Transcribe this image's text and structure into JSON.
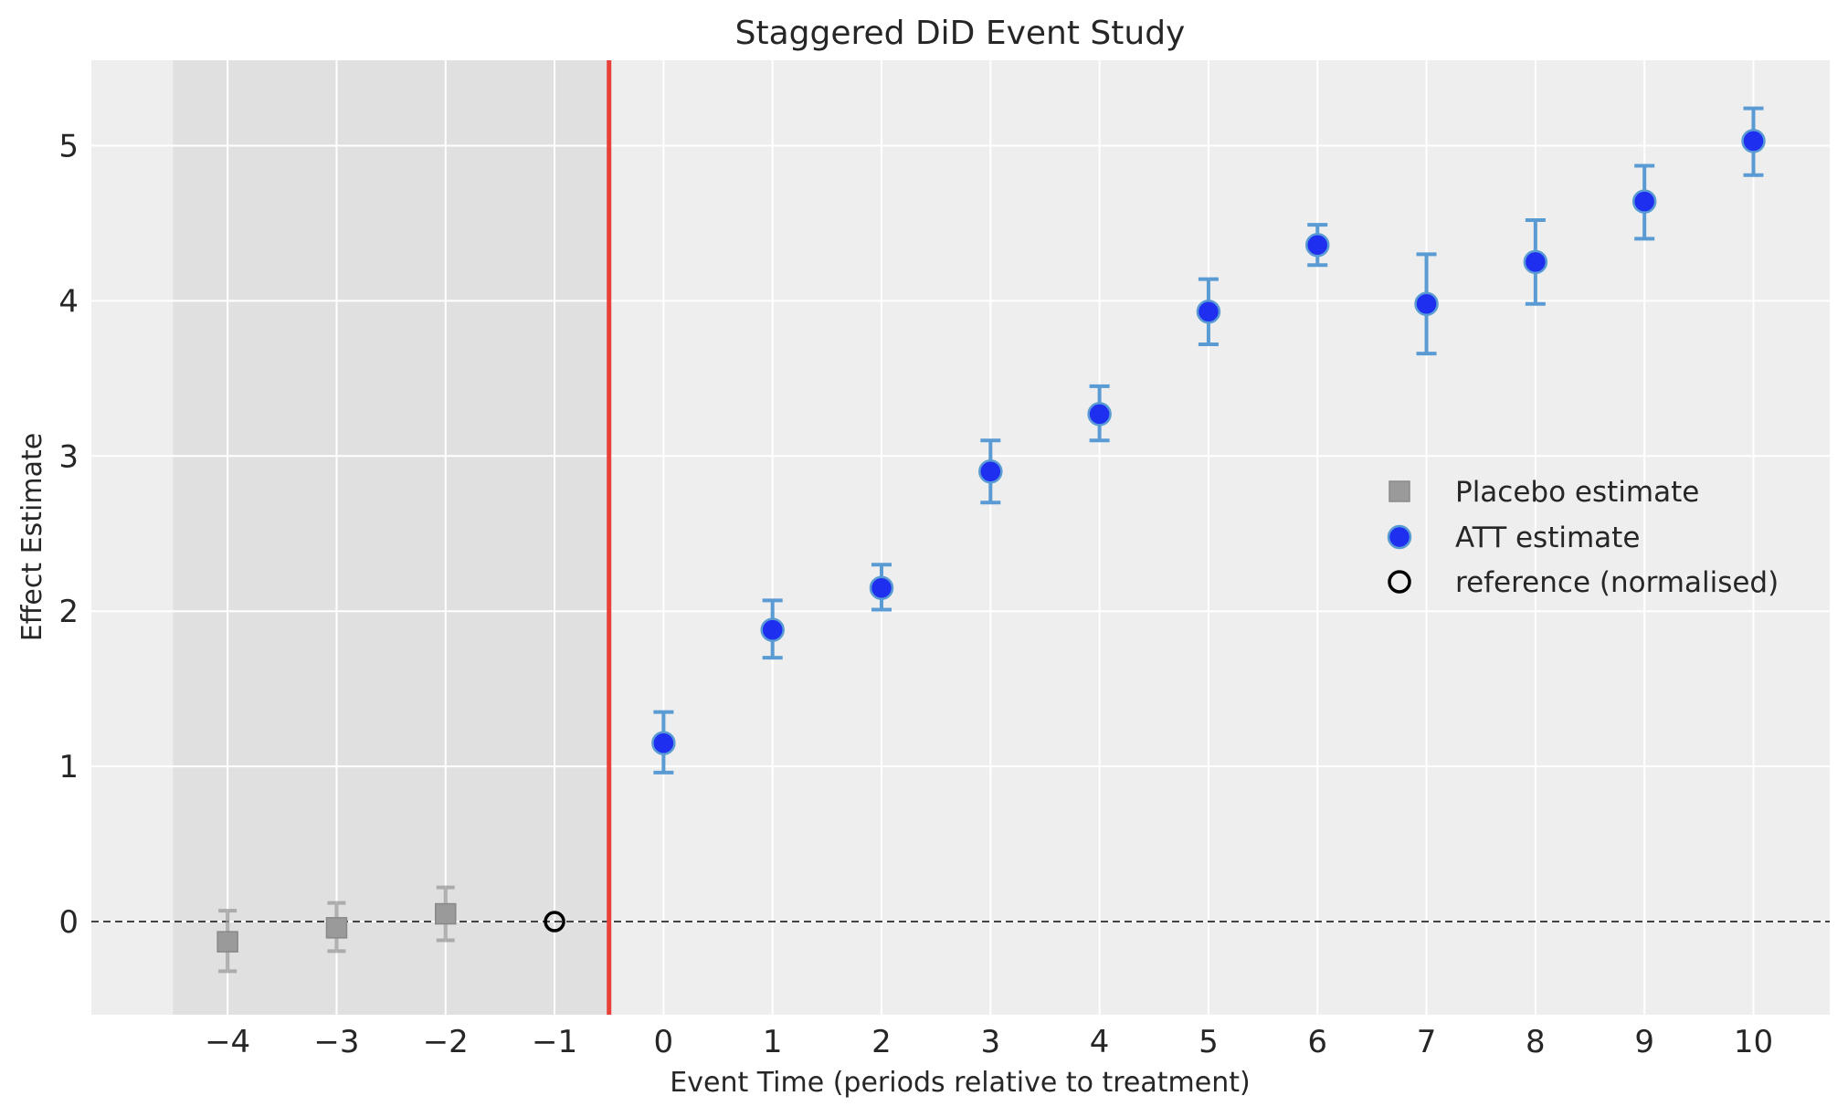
{
  "chart_data": {
    "type": "scatter",
    "title": "Staggered DiD Event Study",
    "xlabel": "Event Time (periods relative to treatment)",
    "ylabel": "Effect Estimate",
    "xlim": [
      -5.25,
      10.7
    ],
    "ylim": [
      -0.6,
      5.55
    ],
    "xticks": [
      -4,
      -3,
      -2,
      -1,
      0,
      1,
      2,
      3,
      4,
      5,
      6,
      7,
      8,
      9,
      10
    ],
    "xtick_labels": [
      "−4",
      "−3",
      "−2",
      "−1",
      "0",
      "1",
      "2",
      "3",
      "4",
      "5",
      "6",
      "7",
      "8",
      "9",
      "10"
    ],
    "yticks": [
      0,
      1,
      2,
      3,
      4,
      5
    ],
    "ytick_labels": [
      "0",
      "1",
      "2",
      "3",
      "4",
      "5"
    ],
    "grid": true,
    "legend_position": "center-right",
    "pre_period_shading": [
      -4.5,
      -0.5
    ],
    "treatment_line_x": -0.5,
    "zero_line_y": 0,
    "colors": {
      "plot_bg": "#eeeeee",
      "shade": "#e0e0e0",
      "placebo": "#9a9a9a",
      "att_marker": "#1f2ff0",
      "att_error": "#5a9bd4",
      "treatment_line": "#e8413a",
      "zero_line": "#444444"
    },
    "series": [
      {
        "name": "Placebo estimate",
        "marker": "square",
        "x": [
          -4,
          -3,
          -2
        ],
        "y": [
          -0.13,
          -0.04,
          0.05
        ],
        "lower": [
          -0.32,
          -0.19,
          -0.12
        ],
        "upper": [
          0.07,
          0.12,
          0.22
        ]
      },
      {
        "name": "ATT estimate",
        "marker": "circle",
        "x": [
          0,
          1,
          2,
          3,
          4,
          5,
          6,
          7,
          8,
          9,
          10
        ],
        "y": [
          1.15,
          1.88,
          2.15,
          2.9,
          3.27,
          3.93,
          4.36,
          3.98,
          4.25,
          4.64,
          5.03
        ],
        "lower": [
          0.96,
          1.7,
          2.01,
          2.7,
          3.1,
          3.72,
          4.23,
          3.66,
          3.98,
          4.4,
          4.81
        ],
        "upper": [
          1.35,
          2.07,
          2.3,
          3.1,
          3.45,
          4.14,
          4.49,
          4.3,
          4.52,
          4.87,
          5.24
        ]
      },
      {
        "name": "reference (normalised)",
        "marker": "open-circle",
        "x": [
          -1
        ],
        "y": [
          0
        ]
      }
    ]
  }
}
